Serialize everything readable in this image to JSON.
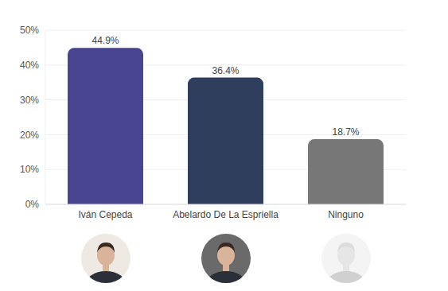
{
  "chart_data": {
    "type": "bar",
    "categories": [
      "Iván Cepeda",
      "Abelardo De La Espriella",
      "Ninguno"
    ],
    "values": [
      44.9,
      36.4,
      18.7
    ],
    "value_labels": [
      "44.9%",
      "36.4%",
      "18.7%"
    ],
    "colors": [
      "#48448f",
      "#2e3e5c",
      "#777777"
    ],
    "ylim": [
      0,
      50
    ],
    "yticks": [
      {
        "value": 0,
        "label": "0%"
      },
      {
        "value": 10,
        "label": "10%"
      },
      {
        "value": 20,
        "label": "20%"
      },
      {
        "value": 30,
        "label": "30%"
      },
      {
        "value": 40,
        "label": "40%"
      },
      {
        "value": 50,
        "label": "50%"
      }
    ],
    "grid": true,
    "data_labels": true
  }
}
